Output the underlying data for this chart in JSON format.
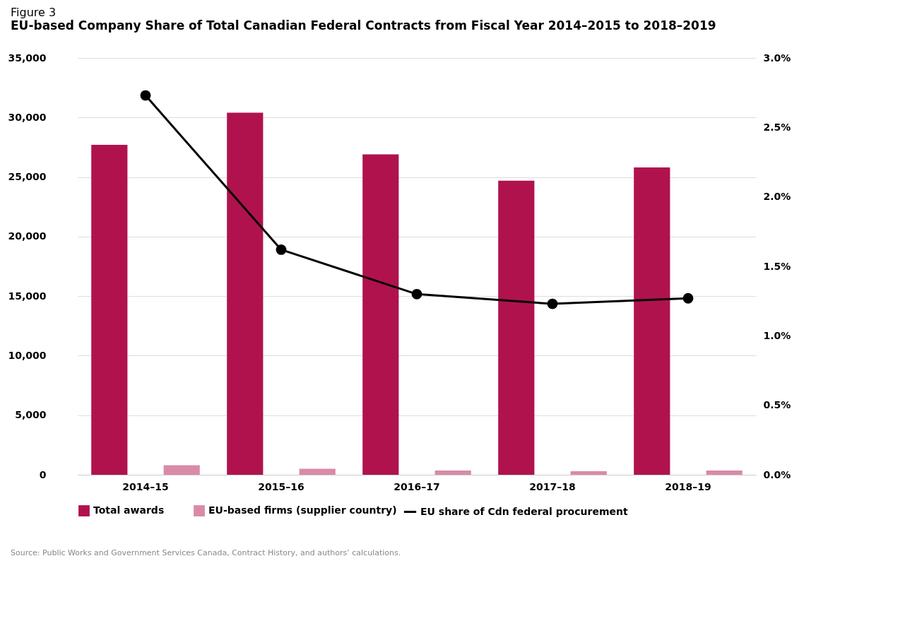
{
  "chart_data": {
    "type": "bar",
    "title": "EU-based Company Share of Total Canadian Federal Contracts from Fiscal Year 2014–2015 to 2018–2019",
    "subtitle": "Figure 3",
    "categories": [
      "2014–15",
      "2015–16",
      "2016–17",
      "2017–18",
      "2018–19"
    ],
    "series": [
      {
        "name": "Total awards",
        "color": "#b0124e",
        "values": [
          27700,
          30400,
          26900,
          24700,
          25800
        ]
      },
      {
        "name": "EU-based firms (supplier country)",
        "color": "#d98aa8",
        "values": [
          800,
          500,
          350,
          300,
          350
        ]
      },
      {
        "name": "EU share of Cdn federal procurement",
        "type": "line",
        "axis": "y2",
        "color": "#000000",
        "values": [
          2.73,
          1.62,
          1.3,
          1.23,
          1.27
        ]
      }
    ],
    "ylim": [
      0,
      35000
    ],
    "yticks": [
      {
        "value": 0,
        "label": "0"
      },
      {
        "value": 5000,
        "label": "5,000"
      },
      {
        "value": 10000,
        "label": "10,000"
      },
      {
        "value": 15000,
        "label": "15,000"
      },
      {
        "value": 20000,
        "label": "20,000"
      },
      {
        "value": 25000,
        "label": "25,000"
      },
      {
        "value": 30000,
        "label": "30,000"
      },
      {
        "value": 35000,
        "label": "35,000"
      }
    ],
    "y2lim": [
      0,
      3.0
    ],
    "y2ticks": [
      {
        "value": 0,
        "label": "0.0%"
      },
      {
        "value": 0.5,
        "label": "0.5%"
      },
      {
        "value": 1.0,
        "label": "1.0%"
      },
      {
        "value": 1.5,
        "label": "1.5%"
      },
      {
        "value": 2.0,
        "label": "2.0%"
      },
      {
        "value": 2.5,
        "label": "2.5%"
      },
      {
        "value": 3.0,
        "label": "3.0%"
      }
    ],
    "grid": "y",
    "legend": "bottom",
    "marker": "circle",
    "line_style": "solid",
    "annotations": [
      "Source: Public Works and Government Services Canada, Contract History, and authors’ calculations."
    ]
  }
}
